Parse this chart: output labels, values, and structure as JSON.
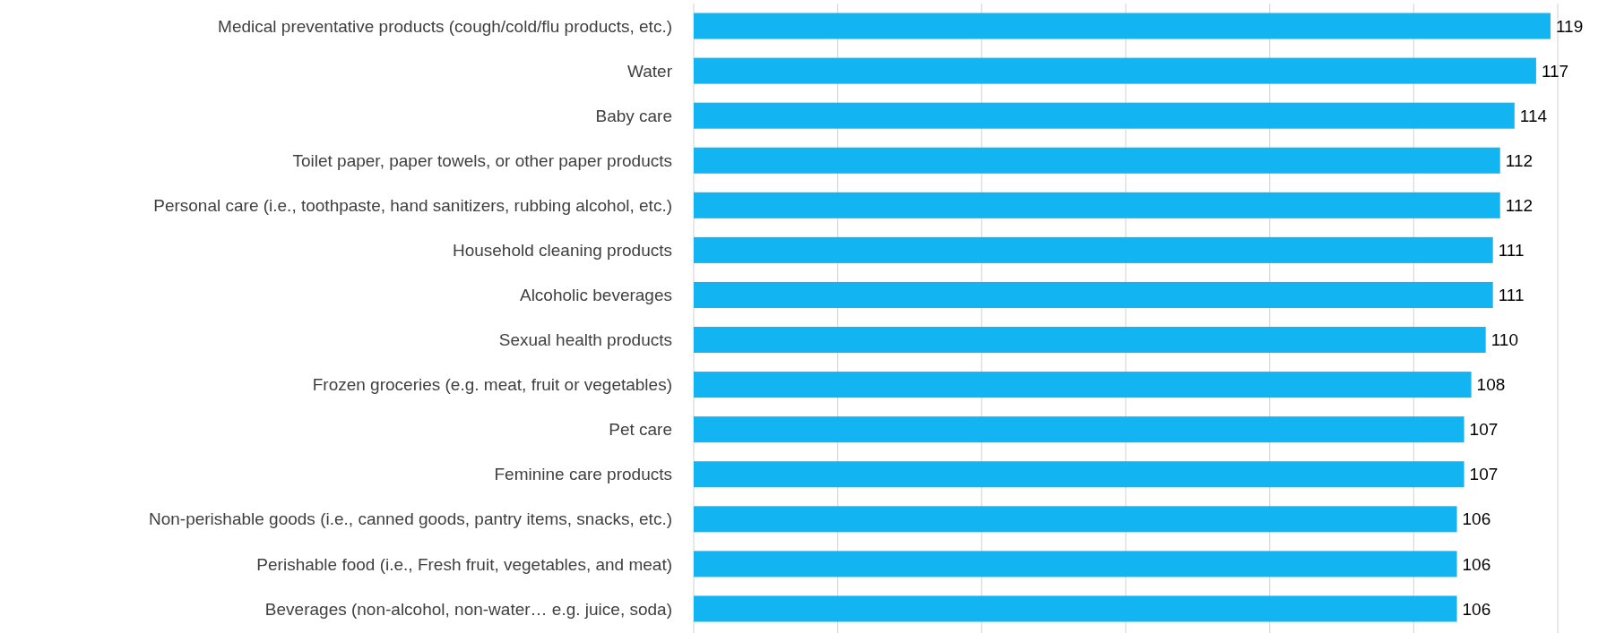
{
  "chart_data": {
    "type": "bar",
    "orientation": "horizontal",
    "categories": [
      "Medical preventative products (cough/cold/flu products, etc.)",
      "Water",
      "Baby care",
      "Toilet paper, paper towels, or other paper products",
      "Personal care (i.e., toothpaste, hand sanitizers, rubbing alcohol, etc.)",
      "Household cleaning products",
      "Alcoholic beverages",
      "Sexual health products",
      "Frozen groceries (e.g. meat, fruit or vegetables)",
      "Pet care",
      "Feminine care products",
      "Non-perishable goods (i.e., canned goods, pantry items, snacks, etc.)",
      "Perishable food (i.e., Fresh fruit, vegetables, and meat)",
      "Beverages (non-alcohol, non-water… e.g. juice, soda)"
    ],
    "values": [
      119,
      117,
      114,
      112,
      112,
      111,
      111,
      110,
      108,
      107,
      107,
      106,
      106,
      106
    ],
    "color": "#12b5f2",
    "data_labels": true,
    "xlim": [
      0,
      120
    ],
    "xticks": [
      {
        "value": 0,
        "label": null
      },
      {
        "value": 20,
        "label": null
      },
      {
        "value": 40,
        "label": null
      },
      {
        "value": 60,
        "label": null
      },
      {
        "value": 80,
        "label": null
      },
      {
        "value": 100,
        "label": null
      },
      {
        "value": 120,
        "label": null
      }
    ],
    "tick_labels": "y",
    "grid": "x"
  }
}
